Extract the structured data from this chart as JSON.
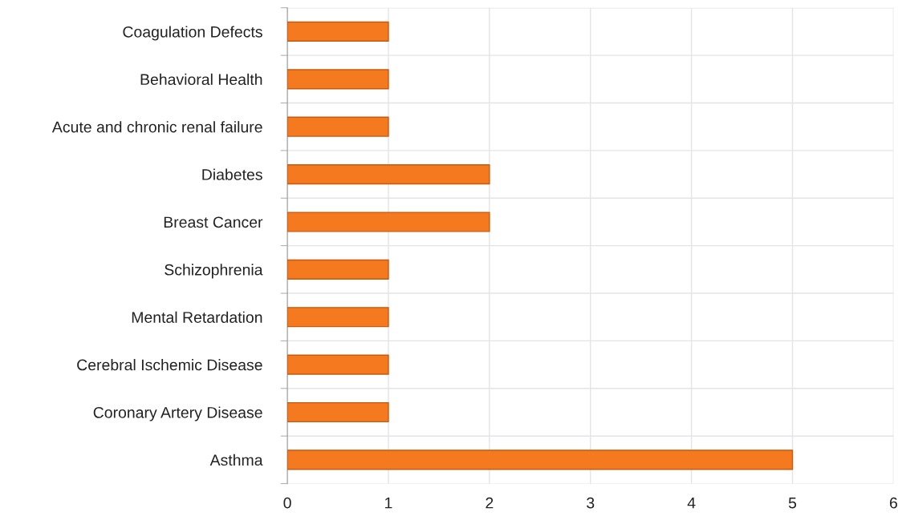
{
  "chart_data": {
    "type": "bar",
    "orientation": "horizontal",
    "categories": [
      "Coagulation Defects",
      "Behavioral Health",
      "Acute and chronic renal failure",
      "Diabetes",
      "Breast Cancer",
      "Schizophrenia",
      "Mental Retardation",
      "Cerebral Ischemic Disease",
      "Coronary Artery Disease",
      "Asthma"
    ],
    "values": [
      1,
      1,
      1,
      2,
      2,
      1,
      1,
      1,
      1,
      5
    ],
    "color": "#f57a1f",
    "xlim": [
      0,
      6
    ],
    "xticks": [
      0,
      1,
      2,
      3,
      4,
      5,
      6
    ],
    "grid": true,
    "legend": false
  }
}
